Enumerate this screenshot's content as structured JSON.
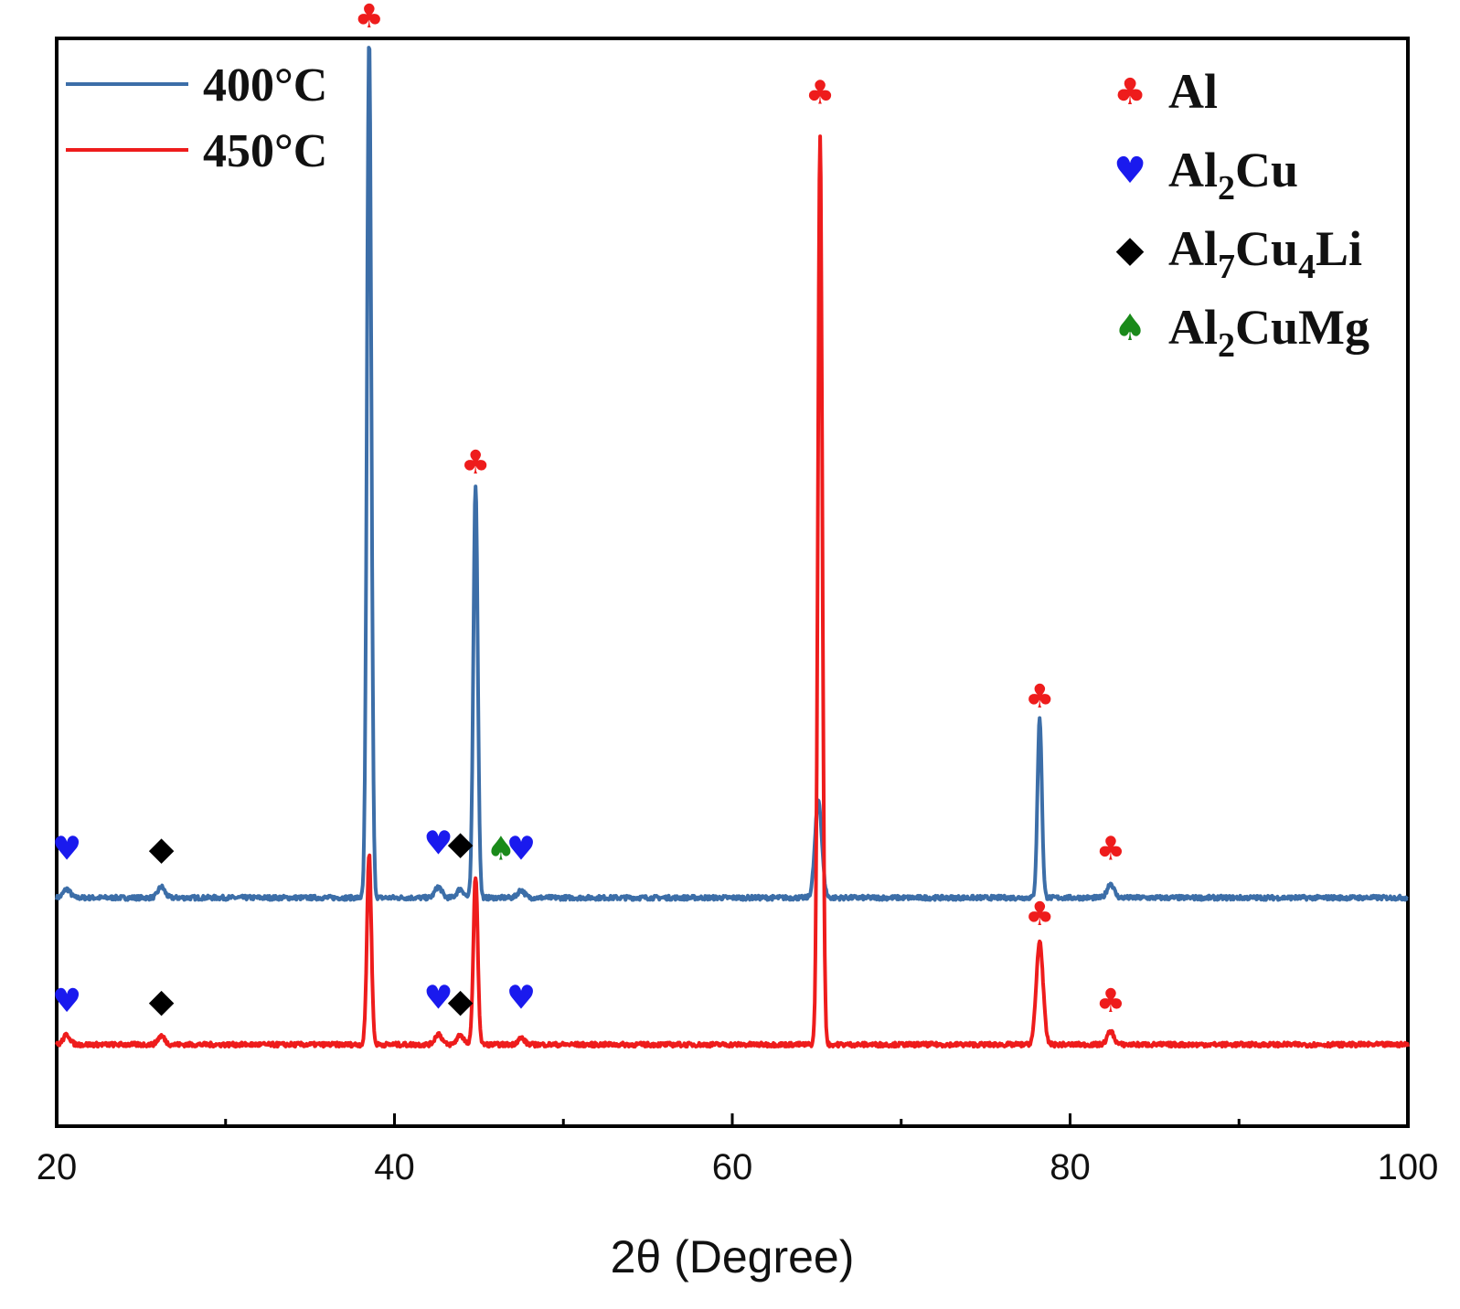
{
  "chart_data": {
    "type": "line",
    "title": "",
    "xlabel": "2θ (Degree)",
    "ylabel": "",
    "xlim": [
      20,
      100
    ],
    "ylim": [
      0,
      1000
    ],
    "xticks": [
      20,
      40,
      60,
      80,
      100
    ],
    "xtick_labels": [
      "20",
      "40",
      "60",
      "80",
      "100"
    ],
    "minor_xticks": [
      30,
      50,
      70,
      90
    ],
    "grid": false,
    "legend_position": "top-left",
    "series": [
      {
        "name": "400°C",
        "color": "#3c6ea8",
        "baseline": 210,
        "peaks": [
          {
            "x": 20.6,
            "height": 8
          },
          {
            "x": 26.2,
            "height": 10
          },
          {
            "x": 38.5,
            "height": 790
          },
          {
            "x": 42.6,
            "height": 10
          },
          {
            "x": 43.9,
            "height": 8
          },
          {
            "x": 44.8,
            "height": 380
          },
          {
            "x": 47.5,
            "height": 7
          },
          {
            "x": 65.1,
            "height": 90
          },
          {
            "x": 78.2,
            "height": 165
          },
          {
            "x": 82.4,
            "height": 13
          }
        ]
      },
      {
        "name": "450°C",
        "color": "#ee1c1c",
        "baseline": 75,
        "peaks": [
          {
            "x": 20.6,
            "height": 9
          },
          {
            "x": 26.2,
            "height": 8
          },
          {
            "x": 38.5,
            "height": 175
          },
          {
            "x": 42.6,
            "height": 10
          },
          {
            "x": 43.9,
            "height": 9
          },
          {
            "x": 44.8,
            "height": 155
          },
          {
            "x": 47.5,
            "height": 6
          },
          {
            "x": 65.2,
            "height": 835
          },
          {
            "x": 78.2,
            "height": 95
          },
          {
            "x": 82.4,
            "height": 12
          }
        ]
      }
    ],
    "phases": [
      {
        "name": "Al",
        "symbol": "♣",
        "color": "#ee1c1c",
        "parts": [
          {
            "text": "Al"
          }
        ]
      },
      {
        "name": "Al2Cu",
        "symbol": "♥",
        "color": "#1a1aee",
        "parts": [
          {
            "text": "Al"
          },
          {
            "text": "2",
            "sub": true
          },
          {
            "text": "Cu"
          }
        ]
      },
      {
        "name": "Al7Cu4Li",
        "symbol": "◆",
        "color": "#000000",
        "parts": [
          {
            "text": "Al"
          },
          {
            "text": "7",
            "sub": true
          },
          {
            "text": "Cu"
          },
          {
            "text": "4",
            "sub": true
          },
          {
            "text": "Li"
          }
        ]
      },
      {
        "name": "Al2CuMg",
        "symbol": "♠",
        "color": "#1a8a1a",
        "parts": [
          {
            "text": "Al"
          },
          {
            "text": "2",
            "sub": true
          },
          {
            "text": "CuMg"
          }
        ]
      }
    ],
    "annotations": [
      {
        "phase": "Al",
        "x": 38.5,
        "y": 1010
      },
      {
        "phase": "Al",
        "x": 44.8,
        "y": 600
      },
      {
        "phase": "Al",
        "x": 65.2,
        "y": 940
      },
      {
        "phase": "Al",
        "x": 78.2,
        "y": 385
      },
      {
        "phase": "Al",
        "x": 82.4,
        "y": 245
      },
      {
        "phase": "Al",
        "x": 78.2,
        "y": 185
      },
      {
        "phase": "Al",
        "x": 82.4,
        "y": 105
      },
      {
        "phase": "Al2Cu",
        "x": 20.6,
        "y": 245
      },
      {
        "phase": "Al2Cu",
        "x": 42.6,
        "y": 250
      },
      {
        "phase": "Al2Cu",
        "x": 47.5,
        "y": 245
      },
      {
        "phase": "Al2Cu",
        "x": 20.6,
        "y": 105
      },
      {
        "phase": "Al2Cu",
        "x": 42.6,
        "y": 108
      },
      {
        "phase": "Al2Cu",
        "x": 47.5,
        "y": 108
      },
      {
        "phase": "Al7Cu4Li",
        "x": 26.2,
        "y": 245
      },
      {
        "phase": "Al7Cu4Li",
        "x": 43.9,
        "y": 250
      },
      {
        "phase": "Al7Cu4Li",
        "x": 26.2,
        "y": 105
      },
      {
        "phase": "Al7Cu4Li",
        "x": 43.9,
        "y": 105
      },
      {
        "phase": "Al2CuMg",
        "x": 46.3,
        "y": 245
      }
    ]
  }
}
